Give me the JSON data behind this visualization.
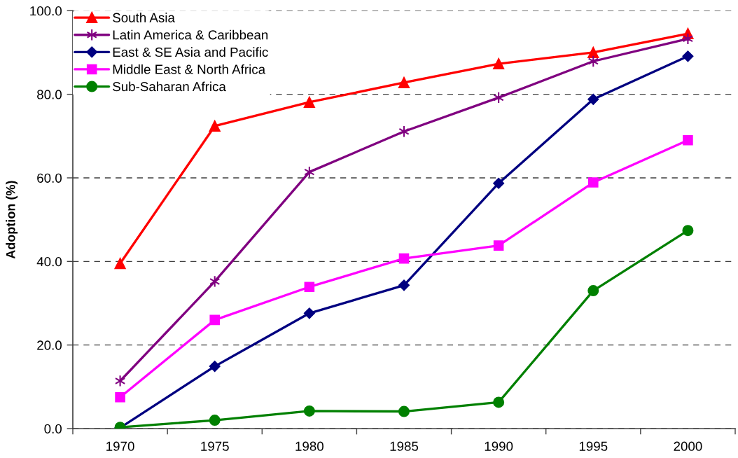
{
  "chart_data": {
    "type": "line",
    "ylabel": "Adoption (%)",
    "categories": [
      "1970",
      "1975",
      "1980",
      "1985",
      "1990",
      "1995",
      "2000"
    ],
    "series": [
      {
        "name": "South Asia",
        "color": "#ff0000",
        "marker": "triangle",
        "values": [
          39.5,
          72.4,
          78.1,
          82.8,
          87.3,
          90.0,
          94.5
        ]
      },
      {
        "name": "Latin America & Caribbean",
        "color": "#800080",
        "marker": "cross",
        "values": [
          11.4,
          35.2,
          61.4,
          71.1,
          79.2,
          87.9,
          93.3
        ]
      },
      {
        "name": "East & SE Asia and Pacific",
        "color": "#000080",
        "marker": "diamond",
        "values": [
          0.2,
          14.9,
          27.6,
          34.3,
          58.7,
          78.8,
          89.1
        ]
      },
      {
        "name": "Middle East & North Africa",
        "color": "#ff00ff",
        "marker": "square",
        "values": [
          7.5,
          26.0,
          33.9,
          40.7,
          43.8,
          58.9,
          69.0
        ]
      },
      {
        "name": "Sub-Saharan Africa",
        "color": "#008000",
        "marker": "circle",
        "values": [
          0.3,
          2.0,
          4.2,
          4.1,
          6.3,
          33.0,
          47.4
        ]
      }
    ],
    "ylim": [
      0,
      100
    ],
    "yticks": [
      {
        "value": 0,
        "label": "0.0"
      },
      {
        "value": 20,
        "label": "20.0"
      },
      {
        "value": 40,
        "label": "40.0"
      },
      {
        "value": 60,
        "label": "60.0"
      },
      {
        "value": 80,
        "label": "80.0"
      },
      {
        "value": 100,
        "label": "100.0"
      }
    ],
    "grid": "y",
    "legend": "top left",
    "line_style": "solid"
  }
}
